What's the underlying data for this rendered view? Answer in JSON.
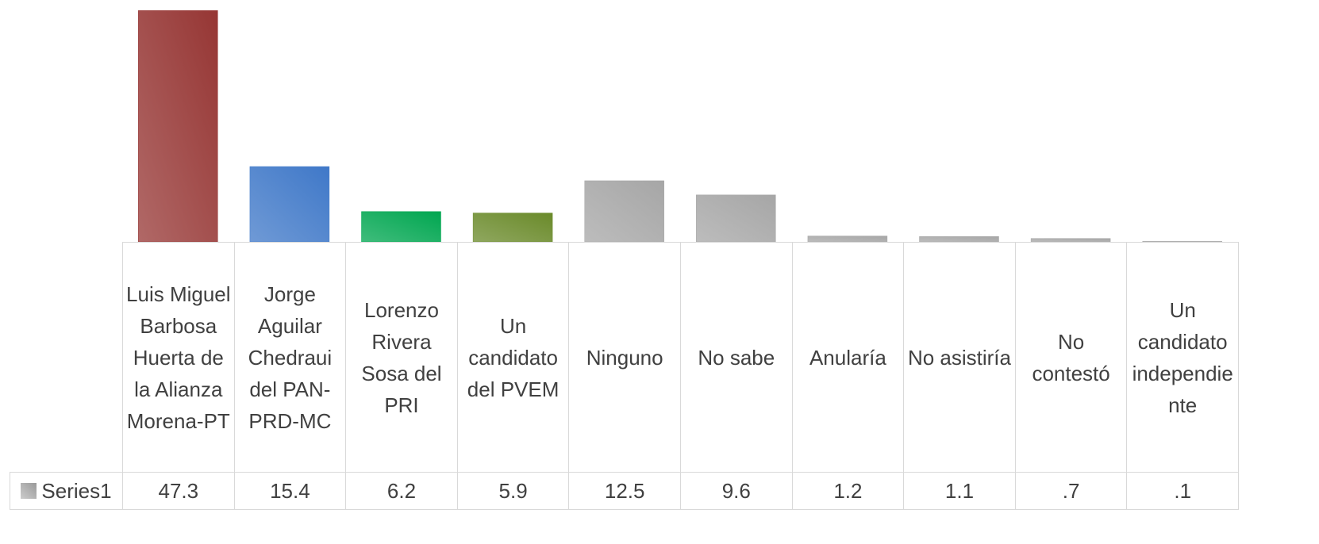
{
  "chart_data": {
    "type": "bar",
    "categories": [
      "Luis Miguel Barbosa Huerta de la Alianza Morena-PT",
      "Jorge Aguilar Chedraui del PAN-PRD-MC",
      "Lorenzo Rivera Sosa del PRI",
      "Un candidato del PVEM",
      "Ninguno",
      "No sabe",
      "Anularía",
      "No asistiría",
      "No contestó",
      "Un candidato independiente"
    ],
    "series": [
      {
        "name": "Series1",
        "color": "#9a9a9a",
        "colors": [
          "#963634",
          "#3f78c8",
          "#00a650",
          "#6a8a2a",
          "#a6a6a6",
          "#a6a6a6",
          "#a6a6a6",
          "#a6a6a6",
          "#a6a6a6",
          "#a6a6a6"
        ],
        "values": [
          47.3,
          15.4,
          6.2,
          5.9,
          12.5,
          9.6,
          1.2,
          1.1,
          0.7,
          0.1
        ],
        "value_labels": [
          "47.3",
          "15.4",
          "6.2",
          "5.9",
          "12.5",
          "9.6",
          "1.2",
          "1.1",
          ".7",
          ".1"
        ]
      }
    ],
    "ylim": [
      0,
      48
    ]
  }
}
